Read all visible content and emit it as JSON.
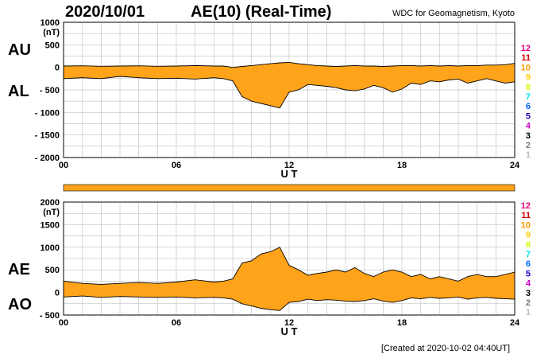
{
  "header": {
    "date": "2020/10/01",
    "title": "AE(10) (Real-Time)",
    "credit": "WDC for Geomagnetism, Kyoto"
  },
  "footer": {
    "created": "[Created at 2020-10-02 04:40UT]"
  },
  "colors": {
    "fill": "#ffa31a",
    "outline": "#000000",
    "grid": "#b0b0b0",
    "bar": "#ffa31a"
  },
  "station_count_labels": [
    {
      "label": "12",
      "color": "#e6007e"
    },
    {
      "label": "11",
      "color": "#d40000"
    },
    {
      "label": "10",
      "color": "#ff9900"
    },
    {
      "label": "9",
      "color": "#ffcc00"
    },
    {
      "label": "8",
      "color": "#ccff00"
    },
    {
      "label": "7",
      "color": "#00e6e6"
    },
    {
      "label": "6",
      "color": "#0066ff"
    },
    {
      "label": "5",
      "color": "#2200cc"
    },
    {
      "label": "4",
      "color": "#cc00cc"
    },
    {
      "label": "3",
      "color": "#000000"
    },
    {
      "label": "2",
      "color": "#777777"
    },
    {
      "label": "1",
      "color": "#bbbbbb"
    }
  ],
  "chart_data": [
    {
      "type": "area",
      "ylabel": "(nT)",
      "xlabel": "U T",
      "series_labels": [
        "AU",
        "AL"
      ],
      "ylim": [
        -2000,
        1000
      ],
      "yticks": [
        1000,
        500,
        0,
        -500,
        -1000,
        -1500,
        -2000
      ],
      "ytick_labels": [
        "1000",
        "500",
        "0",
        "- 500",
        "- 1000",
        "- 1500",
        "- 2000"
      ],
      "xlim": [
        0,
        24
      ],
      "xticks": [
        0,
        6,
        12,
        18,
        24
      ],
      "xtick_labels": [
        "00",
        "06",
        "12",
        "18",
        "24"
      ],
      "x": [
        0,
        1,
        2,
        3,
        4,
        5,
        6,
        7,
        8,
        8.5,
        9,
        9.5,
        10,
        10.5,
        11,
        11.5,
        12,
        12.5,
        13,
        13.5,
        14,
        14.5,
        15,
        15.5,
        16,
        16.5,
        17,
        17.5,
        18,
        18.5,
        19,
        19.5,
        20,
        20.5,
        21,
        21.5,
        22,
        22.5,
        23,
        23.5,
        24
      ],
      "upper": [
        30,
        35,
        25,
        30,
        35,
        25,
        30,
        40,
        30,
        30,
        0,
        20,
        40,
        60,
        80,
        100,
        110,
        80,
        60,
        40,
        30,
        20,
        30,
        40,
        30,
        30,
        20,
        30,
        40,
        40,
        30,
        40,
        30,
        40,
        30,
        40,
        40,
        50,
        50,
        60,
        90
      ],
      "lower": [
        -250,
        -230,
        -250,
        -200,
        -230,
        -250,
        -240,
        -260,
        -230,
        -250,
        -300,
        -650,
        -750,
        -800,
        -850,
        -900,
        -550,
        -500,
        -380,
        -400,
        -420,
        -450,
        -500,
        -520,
        -480,
        -400,
        -450,
        -550,
        -480,
        -350,
        -380,
        -300,
        -320,
        -280,
        -260,
        -350,
        -300,
        -250,
        -300,
        -350,
        -320
      ]
    },
    {
      "type": "area",
      "ylabel": "(nT)",
      "xlabel": "U T",
      "series_labels": [
        "AE",
        "AO"
      ],
      "ylim": [
        -500,
        2000
      ],
      "yticks": [
        2000,
        1500,
        1000,
        500,
        0,
        -500
      ],
      "ytick_labels": [
        "2000",
        "1500",
        "1000",
        "500",
        "0",
        "- 500"
      ],
      "xlim": [
        0,
        24
      ],
      "xticks": [
        0,
        6,
        12,
        18,
        24
      ],
      "xtick_labels": [
        "00",
        "06",
        "12",
        "18",
        "24"
      ],
      "x": [
        0,
        1,
        2,
        3,
        4,
        5,
        6,
        7,
        8,
        8.5,
        9,
        9.5,
        10,
        10.5,
        11,
        11.5,
        12,
        12.5,
        13,
        13.5,
        14,
        14.5,
        15,
        15.5,
        16,
        16.5,
        17,
        17.5,
        18,
        18.5,
        19,
        19.5,
        20,
        20.5,
        21,
        21.5,
        22,
        22.5,
        23,
        23.5,
        24
      ],
      "upper": [
        250,
        200,
        180,
        200,
        220,
        200,
        230,
        280,
        230,
        250,
        300,
        650,
        700,
        850,
        900,
        1000,
        600,
        500,
        380,
        420,
        450,
        500,
        450,
        550,
        420,
        350,
        450,
        500,
        450,
        350,
        400,
        300,
        350,
        300,
        250,
        350,
        400,
        350,
        350,
        400,
        450
      ],
      "lower": [
        -100,
        -80,
        -110,
        -90,
        -100,
        -110,
        -100,
        -120,
        -110,
        -120,
        -150,
        -250,
        -300,
        -350,
        -380,
        -400,
        -220,
        -200,
        -150,
        -180,
        -160,
        -170,
        -190,
        -200,
        -180,
        -140,
        -190,
        -220,
        -180,
        -120,
        -140,
        -110,
        -130,
        -120,
        -100,
        -150,
        -120,
        -110,
        -130,
        -140,
        -150
      ]
    }
  ]
}
